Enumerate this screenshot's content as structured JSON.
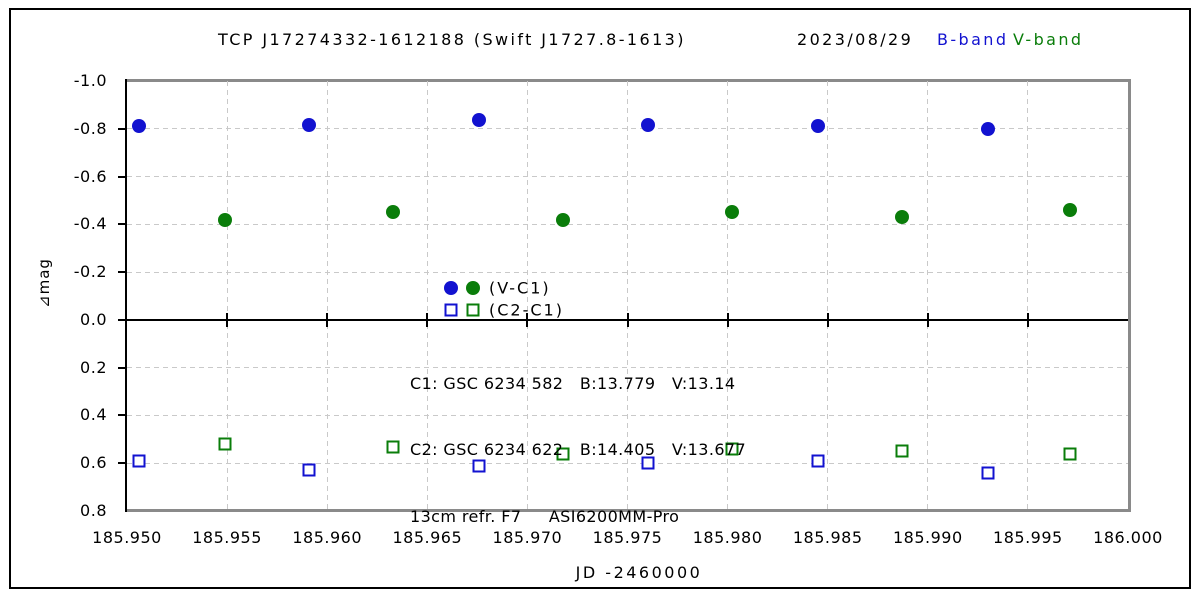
{
  "title": {
    "target": "TCP J17274332-1612188 (Swift J1727.8-1613)",
    "date": "2023/08/29",
    "b_band_label": "B-band",
    "v_band_label": "V-band"
  },
  "axes": {
    "x_label": "JD -2460000",
    "y_label": "⊿mag",
    "x_tick_labels": [
      "185.950",
      "185.955",
      "185.960",
      "185.965",
      "185.970",
      "185.975",
      "185.980",
      "185.985",
      "185.990",
      "185.995",
      "186.000"
    ],
    "y_tick_labels": [
      "-1.0",
      "-0.8",
      "-0.6",
      "-0.4",
      "-0.2",
      "0.0",
      "0.2",
      "0.4",
      "0.6",
      "0.8"
    ]
  },
  "legend": {
    "vc1_label": "(V-C1)",
    "c2c1_label": "(C2-C1)"
  },
  "info": {
    "line1": "C1: GSC 6234 582   B:13.779   V:13.14",
    "line2": "C2: GSC 6234 622   B:14.405   V:13.677",
    "line3": "13cm refr. F7     ASI6200MM-Pro"
  },
  "colors": {
    "b_band": "#1212D0",
    "v_band": "#0A7D0A",
    "grid": "#c9c9c9",
    "plot_border_gray": "#8a8a8a",
    "axis_black": "#000000"
  },
  "chart_data": {
    "type": "scatter",
    "title": "TCP J17274332-1612188 (Swift J1727.8-1613)  2023/08/29",
    "xlabel": "JD -2460000",
    "ylabel": "⊿mag",
    "xlim": [
      185.95,
      186.0
    ],
    "ylim": [
      -1.0,
      0.8
    ],
    "y_axis_note": "magnitude axis, negative (bright) at top; 0.0 line drawn solid with ticks",
    "x_tick_step": 0.005,
    "y_tick_step": 0.2,
    "grid": "dashed both axes",
    "legend_position": "inside, above zero line",
    "series": [
      {
        "name": "B-band (V-C1)",
        "marker": "filled-circle",
        "color_key": "b_band",
        "points": [
          [
            185.9506,
            -0.81
          ],
          [
            185.9591,
            -0.815
          ],
          [
            185.9676,
            -0.835
          ],
          [
            185.976,
            -0.815
          ],
          [
            185.9845,
            -0.81
          ],
          [
            185.993,
            -0.8
          ]
        ]
      },
      {
        "name": "V-band (V-C1)",
        "marker": "filled-circle",
        "color_key": "v_band",
        "points": [
          [
            185.9549,
            -0.42
          ],
          [
            185.9633,
            -0.45
          ],
          [
            185.9718,
            -0.42
          ],
          [
            185.9802,
            -0.45
          ],
          [
            185.9887,
            -0.43
          ],
          [
            185.9971,
            -0.46
          ]
        ]
      },
      {
        "name": "B-band (C2-C1)",
        "marker": "open-square",
        "color_key": "b_band",
        "points": [
          [
            185.9506,
            0.59
          ],
          [
            185.9591,
            0.63
          ],
          [
            185.9676,
            0.61
          ],
          [
            185.976,
            0.6
          ],
          [
            185.9845,
            0.59
          ],
          [
            185.993,
            0.64
          ]
        ]
      },
      {
        "name": "V-band (C2-C1)",
        "marker": "open-square",
        "color_key": "v_band",
        "points": [
          [
            185.9549,
            0.52
          ],
          [
            185.9633,
            0.53
          ],
          [
            185.9718,
            0.56
          ],
          [
            185.9802,
            0.54
          ],
          [
            185.9887,
            0.55
          ],
          [
            185.9971,
            0.56
          ]
        ]
      }
    ]
  }
}
